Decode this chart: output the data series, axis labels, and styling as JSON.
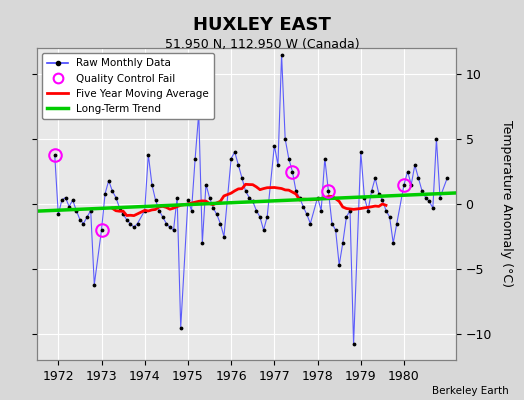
{
  "title": "HUXLEY EAST",
  "subtitle": "51.950 N, 112.950 W (Canada)",
  "credit": "Berkeley Earth",
  "ylabel": "Temperature Anomaly (°C)",
  "ylim": [
    -12,
    12
  ],
  "xlim": [
    1971.5,
    1981.2
  ],
  "yticks": [
    -10,
    -5,
    0,
    5,
    10
  ],
  "xticks": [
    1972,
    1973,
    1974,
    1975,
    1976,
    1977,
    1978,
    1979,
    1980
  ],
  "bg_color": "#d8d8d8",
  "plot_bg_color": "#e8e8e8",
  "grid_color": "#ffffff",
  "raw_color": "#4444ff",
  "ma_color": "#ff0000",
  "trend_color": "#00cc00",
  "qc_color": "#ff00ff",
  "months": [
    1971.917,
    1972.0,
    1972.083,
    1972.167,
    1972.25,
    1972.333,
    1972.417,
    1972.5,
    1972.583,
    1972.667,
    1972.75,
    1972.833,
    1973.0,
    1973.083,
    1973.167,
    1973.25,
    1973.333,
    1973.417,
    1973.5,
    1973.583,
    1973.667,
    1973.75,
    1973.833,
    1974.0,
    1974.083,
    1974.167,
    1974.25,
    1974.333,
    1974.417,
    1974.5,
    1974.583,
    1974.667,
    1974.75,
    1974.833,
    1975.0,
    1975.083,
    1975.167,
    1975.25,
    1975.333,
    1975.417,
    1975.5,
    1975.583,
    1975.667,
    1975.75,
    1975.833,
    1976.0,
    1976.083,
    1976.167,
    1976.25,
    1976.333,
    1976.417,
    1976.5,
    1976.583,
    1976.667,
    1976.75,
    1976.833,
    1977.0,
    1977.083,
    1977.167,
    1977.25,
    1977.333,
    1977.417,
    1977.5,
    1977.583,
    1977.667,
    1977.75,
    1977.833,
    1978.0,
    1978.083,
    1978.167,
    1978.25,
    1978.333,
    1978.417,
    1978.5,
    1978.583,
    1978.667,
    1978.75,
    1978.833,
    1979.0,
    1979.083,
    1979.167,
    1979.25,
    1979.333,
    1979.417,
    1979.5,
    1979.583,
    1979.667,
    1979.75,
    1979.833,
    1980.0,
    1980.083,
    1980.167,
    1980.25,
    1980.333,
    1980.417,
    1980.5,
    1980.583,
    1980.667,
    1980.75,
    1980.833,
    1981.0
  ],
  "values": [
    3.8,
    -0.8,
    0.3,
    0.5,
    -0.2,
    0.3,
    -0.5,
    -1.2,
    -1.5,
    -1.0,
    -0.5,
    -6.2,
    -2.0,
    0.8,
    1.8,
    1.0,
    0.5,
    -0.3,
    -0.8,
    -1.2,
    -1.5,
    -1.8,
    -1.5,
    -0.5,
    3.8,
    1.5,
    0.3,
    -0.5,
    -1.0,
    -1.5,
    -1.8,
    -2.0,
    0.5,
    -9.5,
    0.3,
    -0.5,
    3.5,
    7.0,
    -3.0,
    1.5,
    0.5,
    -0.3,
    -0.8,
    -1.5,
    -2.5,
    3.5,
    4.0,
    3.0,
    2.0,
    1.0,
    0.5,
    0.2,
    -0.5,
    -1.0,
    -2.0,
    -1.0,
    4.5,
    3.0,
    11.5,
    5.0,
    3.5,
    2.5,
    1.0,
    0.5,
    -0.2,
    -0.8,
    -1.5,
    0.5,
    -0.5,
    3.5,
    1.0,
    -1.5,
    -2.0,
    -4.7,
    -3.0,
    -1.0,
    -0.5,
    -10.8,
    4.0,
    0.5,
    -0.5,
    1.0,
    2.0,
    0.8,
    0.3,
    -0.5,
    -1.0,
    -3.0,
    -1.5,
    1.5,
    2.5,
    1.5,
    3.0,
    2.0,
    1.0,
    0.5,
    0.2,
    -0.3,
    5.0,
    0.5,
    2.0
  ],
  "qc_fail_indices": [
    0,
    12,
    61,
    70,
    89
  ],
  "trend_x": [
    1971.5,
    1981.2
  ],
  "trend_y": [
    -0.55,
    0.85
  ]
}
